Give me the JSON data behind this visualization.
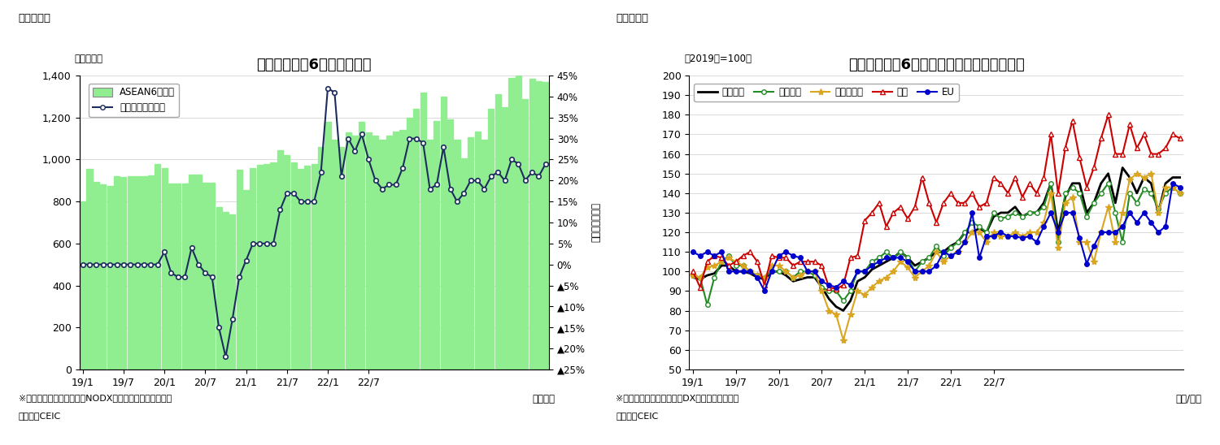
{
  "fig1": {
    "title": "アセアン主要6カ国の輸出額",
    "ylabel_left": "（億ドル）",
    "ylabel_right": "（前年同月比）",
    "xlabel": "（年月）",
    "header": "（図表１）",
    "footnote1": "※シンガポールの輸出額はNODX（石油と再輸出除く）。",
    "footnote2": "（資料）CEIC",
    "bar_color": "#90EE90",
    "bar_edge_color": "#90EE90",
    "line_color": "#1C2D5E",
    "bar_values": [
      800,
      955,
      895,
      880,
      875,
      920,
      915,
      920,
      920,
      920,
      925,
      980,
      960,
      885,
      885,
      885,
      930,
      930,
      890,
      890,
      775,
      750,
      740,
      950,
      855,
      960,
      975,
      980,
      985,
      1045,
      1020,
      985,
      955,
      970,
      980,
      1060,
      1180,
      1095,
      1060,
      1130,
      1115,
      1180,
      1130,
      1115,
      1095,
      1115,
      1135,
      1140,
      1200,
      1240,
      1320,
      1095,
      1185,
      1300,
      1190,
      1095,
      1005,
      1105,
      1135,
      1095,
      1240,
      1310,
      1250,
      1390,
      1400,
      1290,
      1385,
      1375,
      1370
    ],
    "line_values": [
      0,
      0,
      0,
      0,
      0,
      0,
      0,
      0,
      0,
      0,
      0,
      0,
      3,
      -2,
      -3,
      -3,
      4,
      0,
      -2,
      -3,
      -15,
      -22,
      -13,
      -3,
      1,
      5,
      5,
      5,
      5,
      13,
      17,
      17,
      15,
      15,
      15,
      22,
      42,
      41,
      21,
      30,
      27,
      31,
      25,
      20,
      18,
      19,
      19,
      23,
      30,
      30,
      29,
      18,
      19,
      28,
      18,
      15,
      17,
      20,
      20,
      18,
      21,
      22,
      20,
      25,
      24,
      20,
      22,
      21,
      24
    ],
    "xtick_labels": [
      "19/1",
      "19/7",
      "20/1",
      "20/7",
      "21/1",
      "21/7",
      "22/1",
      "22/7"
    ],
    "xtick_positions": [
      0,
      6,
      12,
      18,
      24,
      30,
      36,
      42
    ],
    "ylim_left": [
      0,
      1400
    ],
    "ylim_right": [
      -25,
      45
    ],
    "yticks_left": [
      0,
      200,
      400,
      600,
      800,
      1000,
      1200,
      1400
    ],
    "yticks_right_vals": [
      45,
      40,
      35,
      30,
      25,
      20,
      15,
      10,
      5,
      0,
      -5,
      -10,
      -15,
      -20,
      -25
    ],
    "yticks_right_labels": [
      "45%",
      "40%",
      "35%",
      "30%",
      "25%",
      "20%",
      "15%",
      "10%",
      "5%",
      "0%",
      "▲5%",
      "▲10%",
      "▲15%",
      "▲20%",
      "▲25%"
    ],
    "legend_bar": "ASEAN6カ国計",
    "legend_line": "増加率（右目盛）"
  },
  "fig2": {
    "title": "アセアン主要6カ国　仕向け地別の輸出動向",
    "ylabel_left": "（2019年=100）",
    "xlabel": "（年/月）",
    "header": "（図表２）",
    "footnote1": "※シンガポールの輸出額はDX（再輸出除く）。",
    "footnote2": "（資料）CEIC",
    "ylim": [
      50,
      200
    ],
    "yticks": [
      50,
      60,
      70,
      80,
      90,
      100,
      110,
      120,
      130,
      140,
      150,
      160,
      170,
      180,
      190,
      200
    ],
    "xtick_labels": [
      "19/1",
      "19/7",
      "20/1",
      "20/7",
      "21/1",
      "21/7",
      "22/1",
      "22/7"
    ],
    "xtick_positions": [
      0,
      6,
      12,
      18,
      24,
      30,
      36,
      42
    ],
    "series": {
      "total": {
        "label": "輸出全体",
        "color": "#000000",
        "linewidth": 2.0,
        "marker": null,
        "markersize": 0,
        "linestyle": "-",
        "markerfacecolor": "#000000",
        "values": [
          97,
          96,
          98,
          99,
          103,
          103,
          100,
          100,
          99,
          97,
          96,
          100,
          100,
          98,
          95,
          96,
          97,
          97,
          92,
          86,
          82,
          80,
          85,
          95,
          97,
          101,
          103,
          105,
          107,
          110,
          107,
          103,
          105,
          107,
          110,
          110,
          113,
          115,
          120,
          120,
          122,
          120,
          128,
          130,
          130,
          133,
          128,
          130,
          130,
          135,
          145,
          120,
          138,
          145,
          145,
          130,
          135,
          145,
          150,
          135,
          153,
          148,
          140,
          148,
          145,
          130,
          145,
          148,
          148
        ]
      },
      "east_asia": {
        "label": "東アジア",
        "color": "#228B22",
        "linewidth": 1.5,
        "marker": "o",
        "markersize": 4,
        "linestyle": "-",
        "markerfacecolor": "white",
        "values": [
          98,
          97,
          83,
          97,
          105,
          108,
          103,
          103,
          100,
          98,
          97,
          100,
          100,
          100,
          97,
          100,
          100,
          98,
          92,
          90,
          90,
          85,
          90,
          100,
          100,
          105,
          107,
          110,
          107,
          110,
          107,
          100,
          105,
          107,
          113,
          108,
          112,
          115,
          120,
          125,
          123,
          120,
          130,
          127,
          128,
          130,
          128,
          130,
          130,
          133,
          145,
          115,
          140,
          143,
          140,
          128,
          135,
          140,
          145,
          130,
          115,
          140,
          135,
          142,
          140,
          132,
          140,
          143,
          140
        ]
      },
      "southeast_asia": {
        "label": "東南アジア",
        "color": "#DAA520",
        "linewidth": 1.5,
        "marker": "*",
        "markersize": 6,
        "linestyle": "-",
        "markerfacecolor": "#DAA520",
        "values": [
          98,
          97,
          102,
          103,
          105,
          107,
          105,
          103,
          100,
          98,
          97,
          103,
          103,
          100,
          97,
          98,
          100,
          100,
          90,
          80,
          78,
          65,
          78,
          90,
          88,
          92,
          95,
          97,
          100,
          105,
          102,
          97,
          100,
          103,
          110,
          105,
          108,
          110,
          115,
          120,
          120,
          115,
          120,
          118,
          118,
          120,
          118,
          120,
          120,
          125,
          140,
          112,
          135,
          138,
          115,
          115,
          105,
          120,
          133,
          115,
          130,
          147,
          150,
          148,
          150,
          130,
          143,
          143,
          140
        ]
      },
      "north_america": {
        "label": "北米",
        "color": "#CC0000",
        "linewidth": 1.5,
        "marker": "^",
        "markersize": 5,
        "linestyle": "-",
        "markerfacecolor": "white",
        "values": [
          100,
          92,
          105,
          108,
          107,
          103,
          105,
          108,
          110,
          105,
          93,
          108,
          107,
          107,
          103,
          105,
          105,
          105,
          103,
          92,
          91,
          93,
          107,
          108,
          126,
          130,
          135,
          123,
          130,
          133,
          127,
          133,
          148,
          135,
          125,
          135,
          140,
          135,
          135,
          140,
          133,
          135,
          148,
          145,
          140,
          148,
          138,
          145,
          140,
          148,
          170,
          140,
          163,
          177,
          158,
          143,
          153,
          168,
          180,
          160,
          160,
          175,
          163,
          170,
          160,
          160,
          163,
          170,
          168
        ]
      },
      "eu": {
        "label": "EU",
        "color": "#0000CC",
        "linewidth": 1.5,
        "marker": "o",
        "markersize": 4,
        "linestyle": "-",
        "markerfacecolor": "#0000CC",
        "values": [
          110,
          108,
          110,
          108,
          110,
          100,
          100,
          100,
          100,
          97,
          90,
          100,
          108,
          110,
          108,
          107,
          100,
          100,
          95,
          93,
          92,
          95,
          93,
          100,
          100,
          103,
          105,
          107,
          107,
          107,
          105,
          100,
          100,
          100,
          103,
          110,
          108,
          110,
          115,
          130,
          107,
          118,
          118,
          120,
          118,
          118,
          117,
          118,
          115,
          123,
          130,
          120,
          130,
          130,
          117,
          104,
          113,
          120,
          120,
          120,
          123,
          130,
          125,
          130,
          125,
          120,
          123,
          145,
          143
        ]
      }
    }
  }
}
